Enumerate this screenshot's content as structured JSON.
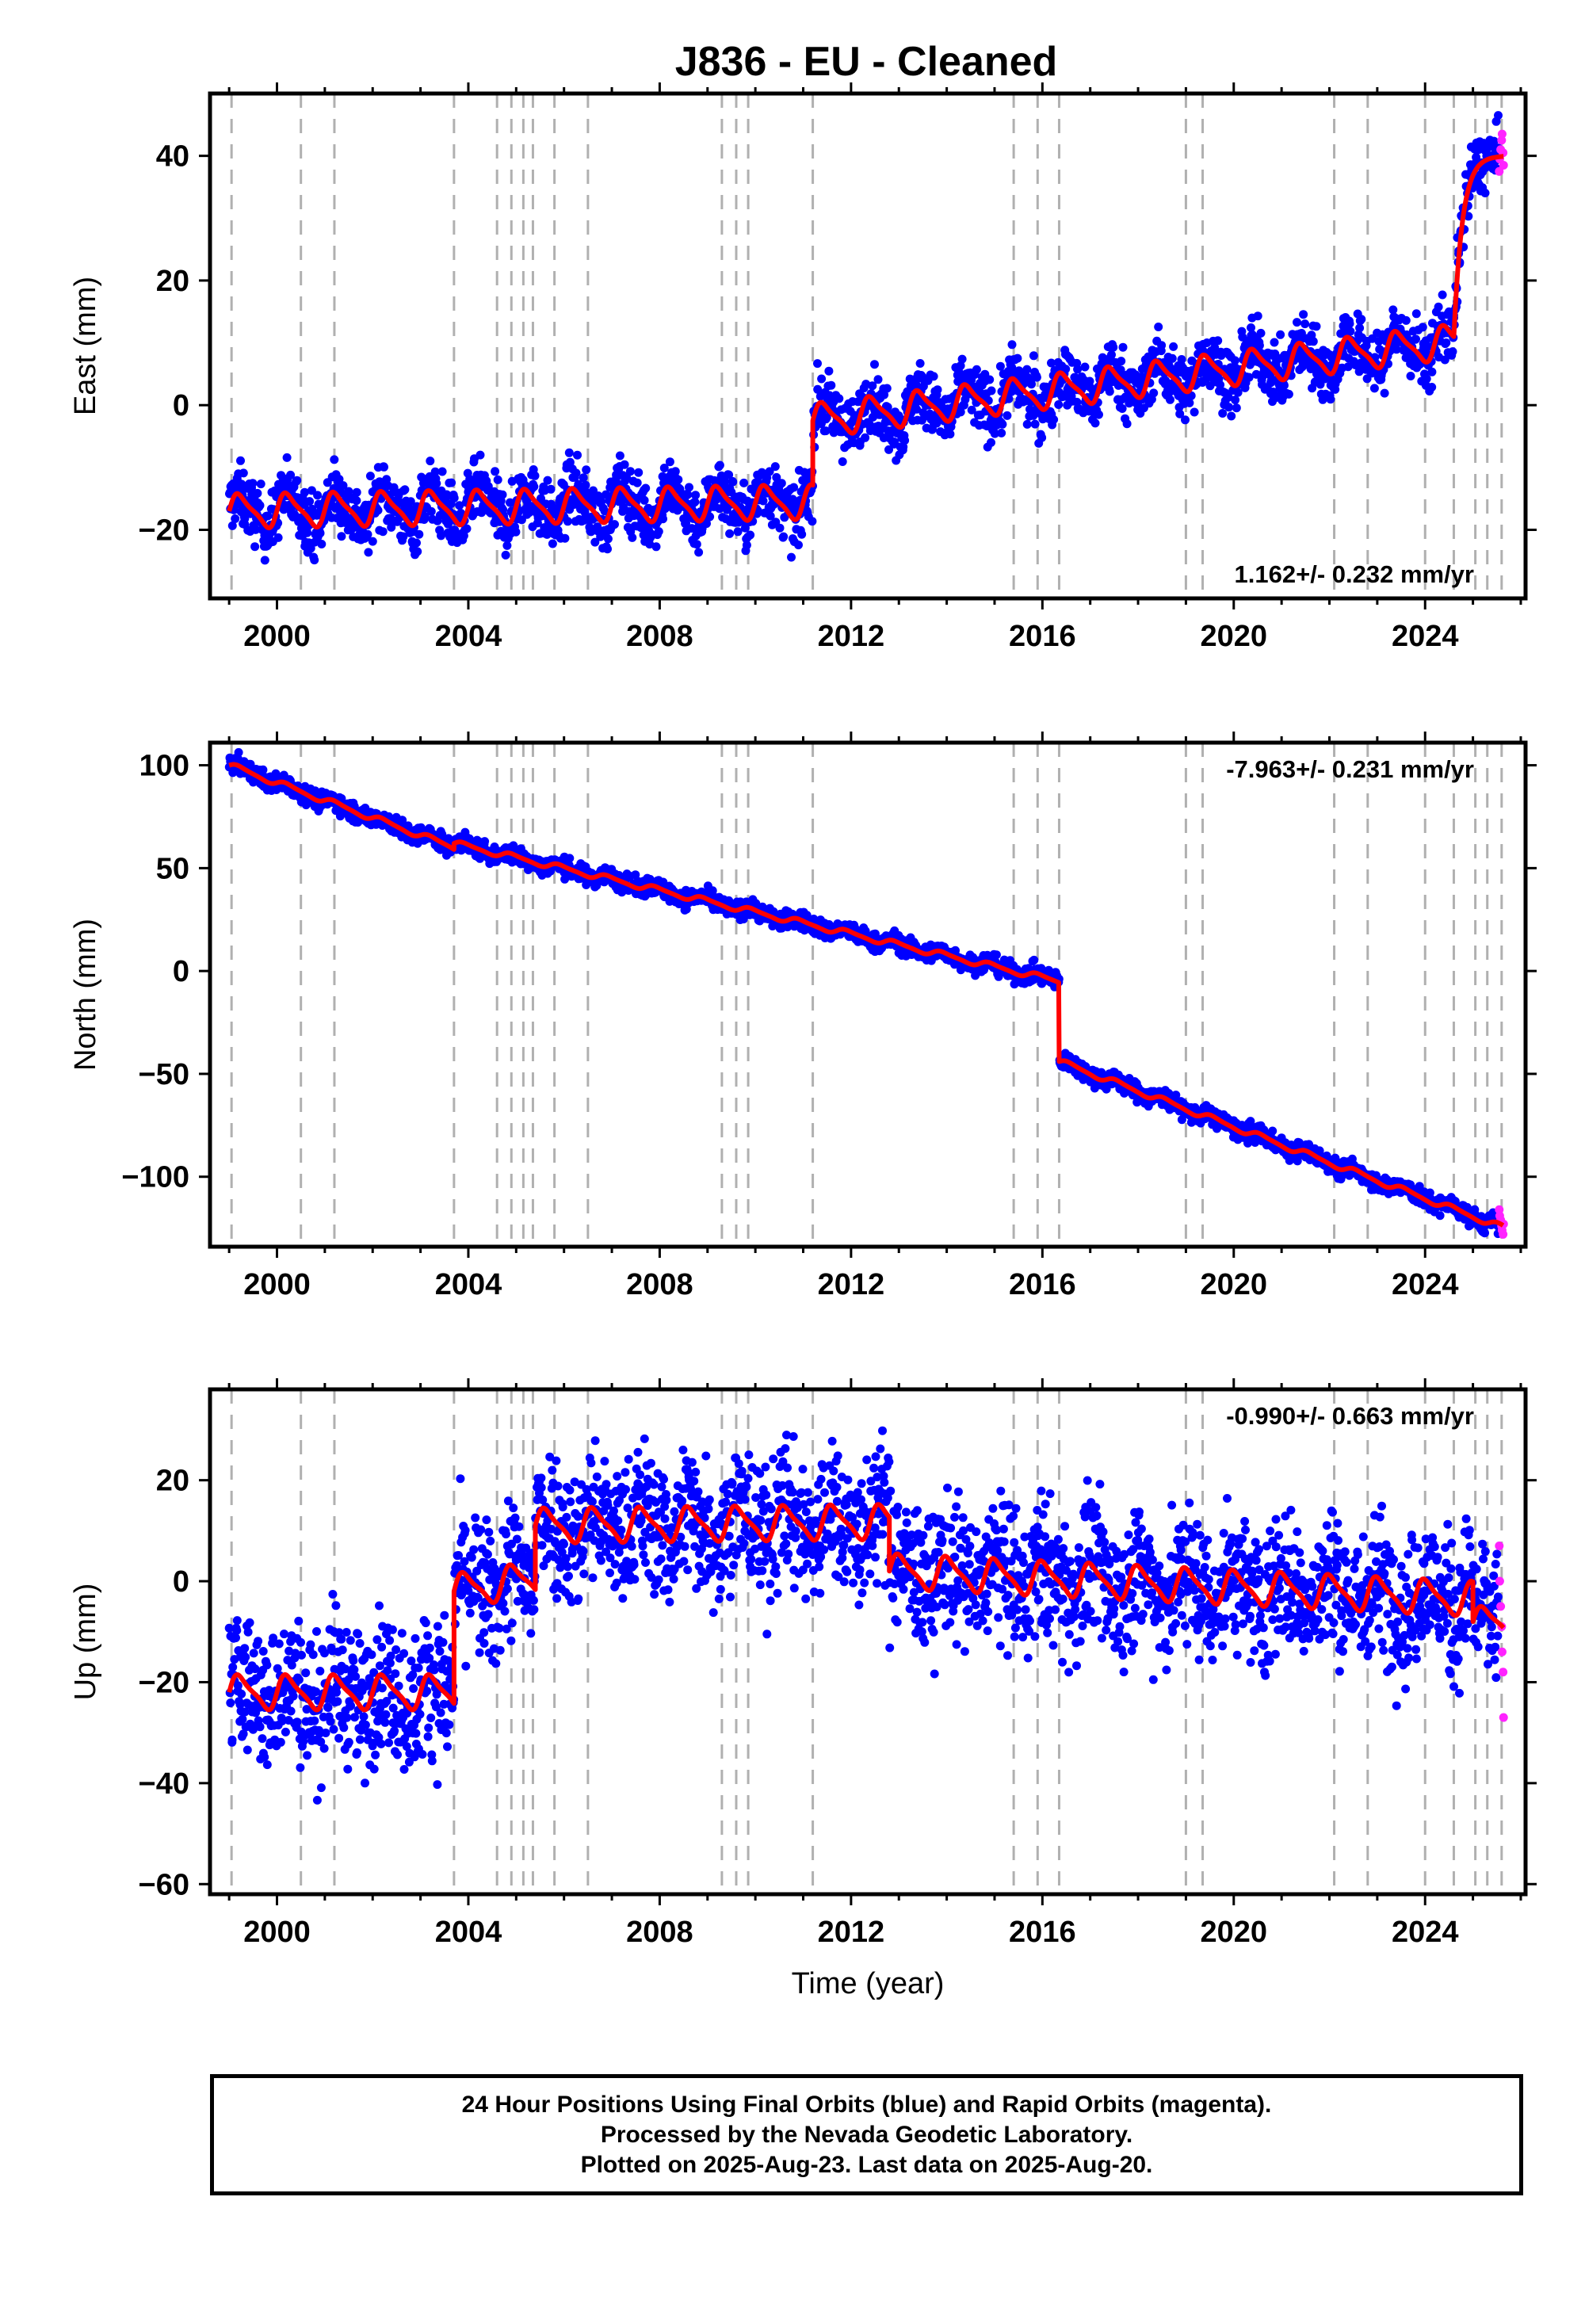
{
  "colors": {
    "final_orbits": "#0000ff",
    "rapid_orbits": "#ff22ff",
    "model": "#ff0000",
    "event_lines": "#b0b0b0",
    "axes": "#000000"
  },
  "chart_data": [
    {
      "type": "scatter",
      "title": "J836  - EU - Cleaned",
      "xlabel": "",
      "ylabel": "East (mm)",
      "xlim": [
        1998.6,
        2026.1
      ],
      "ylim": [
        -31,
        50
      ],
      "xticks": [
        2000,
        2004,
        2008,
        2012,
        2016,
        2020,
        2024
      ],
      "yticks": [
        -20,
        0,
        20,
        40
      ],
      "rate_label": "1.162+/- 0.232 mm/yr",
      "rate_label_position": "bottom-right",
      "model": {
        "name": "model",
        "segments": [
          {
            "x0": 1999.0,
            "x1": 2011.2,
            "base": -17.0,
            "rate": 0.12,
            "amp": 2.8
          },
          {
            "x0": 2011.2,
            "x1": 2024.6,
            "base": -2.5,
            "rate": 0.95,
            "amp": 2.8
          },
          {
            "x0": 2024.6,
            "x1": 2025.64,
            "post": {
              "start": 11,
              "end": 40,
              "tau": 0.18
            }
          }
        ]
      },
      "scatter_noise": 2.5,
      "rapid_points": [
        [
          2025.55,
          37.5
        ],
        [
          2025.56,
          39.5
        ],
        [
          2025.58,
          41.0
        ],
        [
          2025.6,
          42.5
        ],
        [
          2025.61,
          43.5
        ],
        [
          2025.63,
          40.5
        ],
        [
          2025.64,
          38.5
        ]
      ]
    },
    {
      "type": "scatter",
      "title": "",
      "xlabel": "",
      "ylabel": "North (mm)",
      "xlim": [
        1998.6,
        2026.1
      ],
      "ylim": [
        -134,
        111
      ],
      "xticks": [
        2000,
        2004,
        2008,
        2012,
        2016,
        2020,
        2024
      ],
      "yticks": [
        -100,
        -50,
        0,
        50,
        100
      ],
      "rate_label": "-7.963+/- 0.231 mm/yr",
      "rate_label_position": "top-right",
      "model": {
        "name": "model",
        "segments": [
          {
            "x0": 1999.0,
            "x1": 2003.7,
            "base": 100,
            "rate": -8.5,
            "amp": 1.5
          },
          {
            "x0": 2003.7,
            "x1": 2016.35,
            "base": 62,
            "rate": -5.3,
            "amp": 1.5
          },
          {
            "x0": 2016.35,
            "x1": 2025.64,
            "base": -44,
            "rate": -8.7,
            "amp": 1.5
          }
        ]
      },
      "scatter_noise": 2.2,
      "rapid_points": [
        [
          2025.55,
          -116
        ],
        [
          2025.56,
          -119
        ],
        [
          2025.58,
          -121
        ],
        [
          2025.6,
          -124
        ],
        [
          2025.61,
          -126
        ],
        [
          2025.63,
          -128
        ],
        [
          2025.64,
          -123
        ]
      ]
    },
    {
      "type": "scatter",
      "title": "",
      "xlabel": "Time (year)",
      "ylabel": "Up (mm)",
      "xlim": [
        1998.6,
        2026.1
      ],
      "ylim": [
        -62,
        38
      ],
      "xticks": [
        2000,
        2004,
        2008,
        2012,
        2016,
        2020,
        2024
      ],
      "yticks": [
        -60,
        -40,
        -20,
        0,
        20
      ],
      "rate_label": "-0.990+/- 0.663 mm/yr",
      "rate_label_position": "top-right",
      "model": {
        "name": "model",
        "segments": [
          {
            "x0": 1999.0,
            "x1": 2003.7,
            "base": -22,
            "rate": 0.0,
            "amp": 3.5
          },
          {
            "x0": 2003.7,
            "x1": 2005.4,
            "base": -2,
            "rate": 1.5,
            "amp": 3.5
          },
          {
            "x0": 2005.4,
            "x1": 2012.8,
            "base": 11,
            "rate": 0.1,
            "amp": 3.5
          },
          {
            "x0": 2012.8,
            "x1": 2025.0,
            "base": 2,
            "rate": -0.45,
            "amp": 3.5
          },
          {
            "x0": 2025.0,
            "x1": 2025.64,
            "base": -8,
            "rate": 0.0,
            "amp": 3.0
          }
        ]
      },
      "scatter_noise": 7.0,
      "rapid_points": [
        [
          2025.55,
          7
        ],
        [
          2025.56,
          0
        ],
        [
          2025.58,
          -5
        ],
        [
          2025.6,
          -9
        ],
        [
          2025.61,
          -14
        ],
        [
          2025.63,
          -18
        ],
        [
          2025.64,
          -27
        ]
      ]
    }
  ],
  "event_lines": [
    1999.05,
    2000.5,
    2001.2,
    2003.7,
    2004.6,
    2004.9,
    2005.15,
    2005.35,
    2005.8,
    2006.5,
    2009.3,
    2009.6,
    2009.85,
    2011.2,
    2015.4,
    2015.9,
    2016.35,
    2019.0,
    2019.35,
    2022.1,
    2022.8,
    2024.0,
    2024.6,
    2025.05,
    2025.3,
    2025.6
  ],
  "footer": {
    "line1": "24 Hour Positions Using Final Orbits (blue) and Rapid Orbits (magenta).",
    "line2": "Processed by the Nevada Geodetic Laboratory.",
    "line3": "Plotted on 2025-Aug-23. Last data on 2025-Aug-20."
  }
}
